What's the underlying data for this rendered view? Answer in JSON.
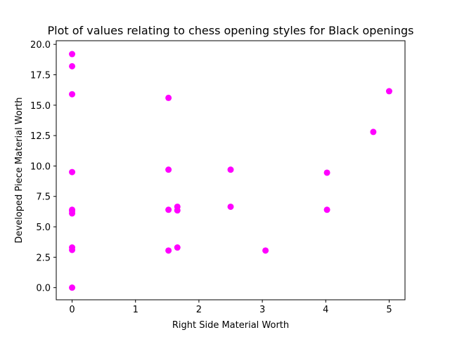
{
  "chart_data": {
    "type": "scatter",
    "title": "Plot of values relating to chess opening styles for Black openings",
    "xlabel": "Right Side Material Worth",
    "ylabel": "Developed Piece Material Worth",
    "xlim": [
      -0.25,
      5.25
    ],
    "ylim": [
      -1.0,
      20.3
    ],
    "xticks": [
      0,
      1,
      2,
      3,
      4,
      5
    ],
    "xtick_labels": [
      "0",
      "1",
      "2",
      "3",
      "4",
      "5"
    ],
    "yticks": [
      0.0,
      2.5,
      5.0,
      7.5,
      10.0,
      12.5,
      15.0,
      17.5,
      20.0
    ],
    "ytick_labels": [
      "0.0",
      "2.5",
      "5.0",
      "7.5",
      "10.0",
      "12.5",
      "15.0",
      "17.5",
      "20.0"
    ],
    "grid": false,
    "marker_color": "#ff00ff",
    "points": [
      {
        "x": 0,
        "y": 19.2
      },
      {
        "x": 0,
        "y": 18.2
      },
      {
        "x": 0,
        "y": 15.9
      },
      {
        "x": 0,
        "y": 9.5
      },
      {
        "x": 0,
        "y": 6.4
      },
      {
        "x": 0,
        "y": 6.3
      },
      {
        "x": 0,
        "y": 6.1
      },
      {
        "x": 0,
        "y": 3.3
      },
      {
        "x": 0,
        "y": 3.1
      },
      {
        "x": 0,
        "y": 0.0
      },
      {
        "x": 1.52,
        "y": 15.6
      },
      {
        "x": 1.52,
        "y": 9.7
      },
      {
        "x": 1.52,
        "y": 6.4
      },
      {
        "x": 1.52,
        "y": 3.05
      },
      {
        "x": 1.66,
        "y": 6.65
      },
      {
        "x": 1.66,
        "y": 6.35
      },
      {
        "x": 1.66,
        "y": 3.3
      },
      {
        "x": 2.5,
        "y": 9.7
      },
      {
        "x": 2.5,
        "y": 6.65
      },
      {
        "x": 3.05,
        "y": 3.05
      },
      {
        "x": 4.02,
        "y": 9.45
      },
      {
        "x": 4.02,
        "y": 6.4
      },
      {
        "x": 4.75,
        "y": 12.8
      },
      {
        "x": 5.0,
        "y": 16.15
      }
    ]
  }
}
